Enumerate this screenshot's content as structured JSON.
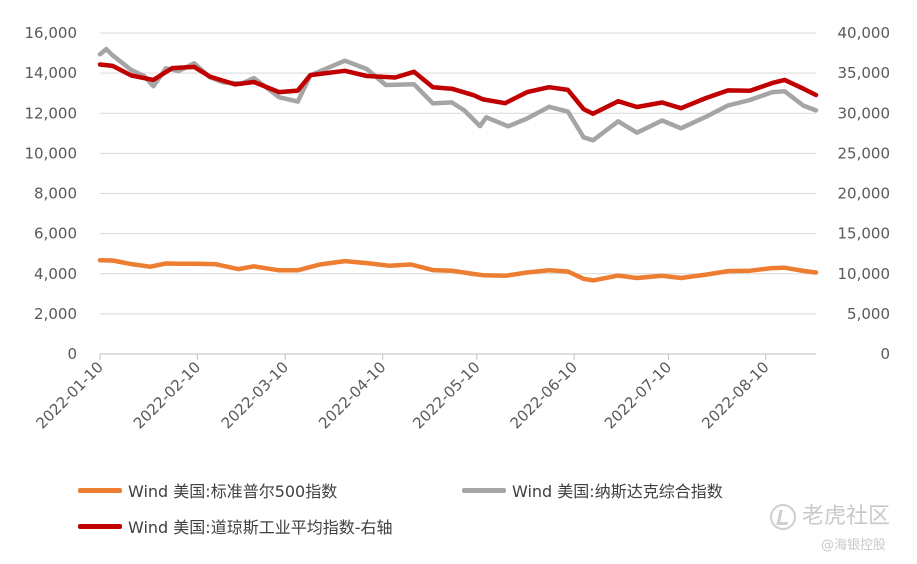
{
  "chart_data": {
    "type": "line",
    "title": "",
    "y_left": {
      "lim": [
        0,
        16000
      ],
      "ticks": [
        "0",
        "2,000",
        "4,000",
        "6,000",
        "8,000",
        "10,000",
        "12,000",
        "14,000",
        "16,000"
      ]
    },
    "y_right": {
      "lim": [
        0,
        40000
      ],
      "ticks": [
        "0",
        "5,000",
        "10,000",
        "15,000",
        "20,000",
        "25,000",
        "30,000",
        "35,000",
        "40,000"
      ]
    },
    "x_ticks": [
      "2022-01-10",
      "2022-02-10",
      "2022-03-10",
      "2022-04-10",
      "2022-05-10",
      "2022-06-10",
      "2022-07-10",
      "2022-08-10"
    ],
    "x_start": "2022-01-10",
    "x_end": "2022-08-26",
    "grid": true,
    "series": [
      {
        "name": "Wind 美国:标准普尔500指数",
        "axis": "left",
        "color": "#ED7D31",
        "points": [
          [
            "2022-01-10",
            4670
          ],
          [
            "2022-01-14",
            4660
          ],
          [
            "2022-01-20",
            4480
          ],
          [
            "2022-01-26",
            4350
          ],
          [
            "2022-01-31",
            4510
          ],
          [
            "2022-02-04",
            4500
          ],
          [
            "2022-02-10",
            4500
          ],
          [
            "2022-02-16",
            4470
          ],
          [
            "2022-02-23",
            4230
          ],
          [
            "2022-02-28",
            4370
          ],
          [
            "2022-03-08",
            4170
          ],
          [
            "2022-03-14",
            4170
          ],
          [
            "2022-03-21",
            4460
          ],
          [
            "2022-03-29",
            4630
          ],
          [
            "2022-04-05",
            4530
          ],
          [
            "2022-04-12",
            4400
          ],
          [
            "2022-04-19",
            4460
          ],
          [
            "2022-04-26",
            4180
          ],
          [
            "2022-05-02",
            4150
          ],
          [
            "2022-05-09",
            3990
          ],
          [
            "2022-05-12",
            3930
          ],
          [
            "2022-05-19",
            3900
          ],
          [
            "2022-05-26",
            4060
          ],
          [
            "2022-06-02",
            4170
          ],
          [
            "2022-06-08",
            4110
          ],
          [
            "2022-06-13",
            3750
          ],
          [
            "2022-06-16",
            3670
          ],
          [
            "2022-06-24",
            3910
          ],
          [
            "2022-06-30",
            3790
          ],
          [
            "2022-07-08",
            3900
          ],
          [
            "2022-07-14",
            3790
          ],
          [
            "2022-07-22",
            3960
          ],
          [
            "2022-07-29",
            4130
          ],
          [
            "2022-08-05",
            4150
          ],
          [
            "2022-08-12",
            4280
          ],
          [
            "2022-08-16",
            4300
          ],
          [
            "2022-08-22",
            4140
          ],
          [
            "2022-08-26",
            4060
          ]
        ]
      },
      {
        "name": "Wind 美国:纳斯达克综合指数",
        "axis": "left",
        "color": "#A5A5A5",
        "points": [
          [
            "2022-01-10",
            14940
          ],
          [
            "2022-01-12",
            15200
          ],
          [
            "2022-01-14",
            14890
          ],
          [
            "2022-01-20",
            14150
          ],
          [
            "2022-01-24",
            13860
          ],
          [
            "2022-01-27",
            13350
          ],
          [
            "2022-01-31",
            14240
          ],
          [
            "2022-02-04",
            14100
          ],
          [
            "2022-02-09",
            14490
          ],
          [
            "2022-02-14",
            13790
          ],
          [
            "2022-02-18",
            13550
          ],
          [
            "2022-02-24",
            13470
          ],
          [
            "2022-02-28",
            13750
          ],
          [
            "2022-03-08",
            12800
          ],
          [
            "2022-03-14",
            12580
          ],
          [
            "2022-03-18",
            13890
          ],
          [
            "2022-03-29",
            14620
          ],
          [
            "2022-04-05",
            14200
          ],
          [
            "2022-04-11",
            13410
          ],
          [
            "2022-04-20",
            13450
          ],
          [
            "2022-04-26",
            12490
          ],
          [
            "2022-05-02",
            12540
          ],
          [
            "2022-05-06",
            12140
          ],
          [
            "2022-05-11",
            11360
          ],
          [
            "2022-05-13",
            11800
          ],
          [
            "2022-05-20",
            11350
          ],
          [
            "2022-05-26",
            11740
          ],
          [
            "2022-06-02",
            12320
          ],
          [
            "2022-06-08",
            12080
          ],
          [
            "2022-06-13",
            10800
          ],
          [
            "2022-06-16",
            10650
          ],
          [
            "2022-06-24",
            11600
          ],
          [
            "2022-06-30",
            11030
          ],
          [
            "2022-07-08",
            11640
          ],
          [
            "2022-07-14",
            11250
          ],
          [
            "2022-07-22",
            11830
          ],
          [
            "2022-07-29",
            12390
          ],
          [
            "2022-08-05",
            12660
          ],
          [
            "2022-08-12",
            13050
          ],
          [
            "2022-08-16",
            13100
          ],
          [
            "2022-08-22",
            12380
          ],
          [
            "2022-08-26",
            12140
          ]
        ]
      },
      {
        "name": "Wind 美国:道琼斯工业平均指数-右轴",
        "axis": "right",
        "color": "#C00000",
        "points": [
          [
            "2022-01-10",
            36070
          ],
          [
            "2022-01-14",
            35900
          ],
          [
            "2022-01-20",
            34700
          ],
          [
            "2022-01-27",
            34160
          ],
          [
            "2022-02-02",
            35630
          ],
          [
            "2022-02-09",
            35770
          ],
          [
            "2022-02-14",
            34570
          ],
          [
            "2022-02-22",
            33600
          ],
          [
            "2022-02-28",
            33890
          ],
          [
            "2022-03-08",
            32630
          ],
          [
            "2022-03-14",
            32820
          ],
          [
            "2022-03-18",
            34750
          ],
          [
            "2022-03-29",
            35290
          ],
          [
            "2022-04-05",
            34640
          ],
          [
            "2022-04-14",
            34450
          ],
          [
            "2022-04-20",
            35160
          ],
          [
            "2022-04-26",
            33240
          ],
          [
            "2022-05-02",
            33060
          ],
          [
            "2022-05-09",
            32250
          ],
          [
            "2022-05-12",
            31730
          ],
          [
            "2022-05-19",
            31250
          ],
          [
            "2022-05-26",
            32630
          ],
          [
            "2022-06-02",
            33250
          ],
          [
            "2022-06-08",
            32910
          ],
          [
            "2022-06-13",
            30520
          ],
          [
            "2022-06-16",
            29930
          ],
          [
            "2022-06-24",
            31500
          ],
          [
            "2022-06-30",
            30780
          ],
          [
            "2022-07-08",
            31340
          ],
          [
            "2022-07-14",
            30630
          ],
          [
            "2022-07-22",
            31900
          ],
          [
            "2022-07-29",
            32850
          ],
          [
            "2022-08-05",
            32800
          ],
          [
            "2022-08-12",
            33760
          ],
          [
            "2022-08-16",
            34150
          ],
          [
            "2022-08-22",
            33060
          ],
          [
            "2022-08-26",
            32280
          ]
        ]
      }
    ],
    "legend": "bottom"
  },
  "watermark": {
    "brand": "老虎社区",
    "handle": "@海银控股"
  }
}
